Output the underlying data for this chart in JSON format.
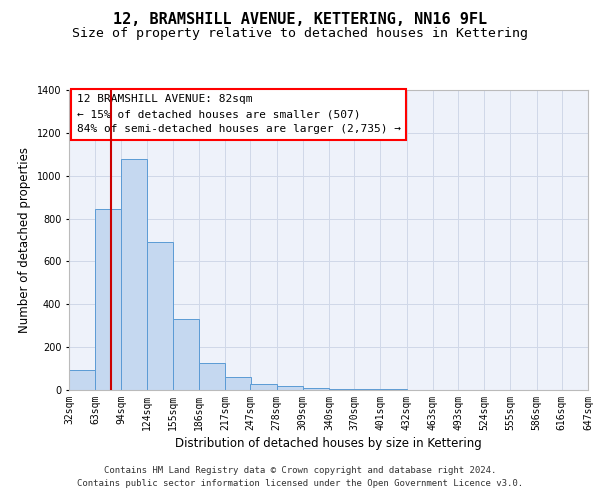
{
  "title": "12, BRAMSHILL AVENUE, KETTERING, NN16 9FL",
  "subtitle": "Size of property relative to detached houses in Kettering",
  "xlabel": "Distribution of detached houses by size in Kettering",
  "ylabel": "Number of detached properties",
  "annotation_line1": "12 BRAMSHILL AVENUE: 82sqm",
  "annotation_line2": "← 15% of detached houses are smaller (507)",
  "annotation_line3": "84% of semi-detached houses are larger (2,735) →",
  "footer_line1": "Contains HM Land Registry data © Crown copyright and database right 2024.",
  "footer_line2": "Contains public sector information licensed under the Open Government Licence v3.0.",
  "property_size": 82,
  "bar_left_edges": [
    32,
    63,
    94,
    124,
    155,
    186,
    217,
    247,
    278,
    309,
    340,
    370,
    401,
    432,
    463,
    493,
    524,
    555,
    586,
    616
  ],
  "bar_widths": [
    31,
    31,
    31,
    31,
    31,
    31,
    31,
    31,
    31,
    31,
    31,
    31,
    31,
    31,
    31,
    31,
    31,
    31,
    31,
    31
  ],
  "bar_heights": [
    95,
    845,
    1080,
    690,
    330,
    125,
    60,
    30,
    20,
    10,
    5,
    5,
    3,
    2,
    2,
    2,
    1,
    1,
    1,
    1
  ],
  "bar_color": "#c5d8f0",
  "bar_edgecolor": "#5b9bd5",
  "vline_color": "#cc0000",
  "vline_x": 82,
  "ylim": [
    0,
    1400
  ],
  "xlim": [
    32,
    647
  ],
  "yticks": [
    0,
    200,
    400,
    600,
    800,
    1000,
    1200,
    1400
  ],
  "xtick_labels": [
    "32sqm",
    "63sqm",
    "94sqm",
    "124sqm",
    "155sqm",
    "186sqm",
    "217sqm",
    "247sqm",
    "278sqm",
    "309sqm",
    "340sqm",
    "370sqm",
    "401sqm",
    "432sqm",
    "463sqm",
    "493sqm",
    "524sqm",
    "555sqm",
    "586sqm",
    "616sqm",
    "647sqm"
  ],
  "xtick_positions": [
    32,
    63,
    94,
    124,
    155,
    186,
    217,
    247,
    278,
    309,
    340,
    370,
    401,
    432,
    463,
    493,
    524,
    555,
    586,
    616,
    647
  ],
  "grid_color": "#d0d8e8",
  "background_color": "#eef2fa",
  "title_fontsize": 11,
  "subtitle_fontsize": 9.5,
  "annotation_fontsize": 8,
  "axis_label_fontsize": 8.5,
  "tick_fontsize": 7,
  "footer_fontsize": 6.5
}
